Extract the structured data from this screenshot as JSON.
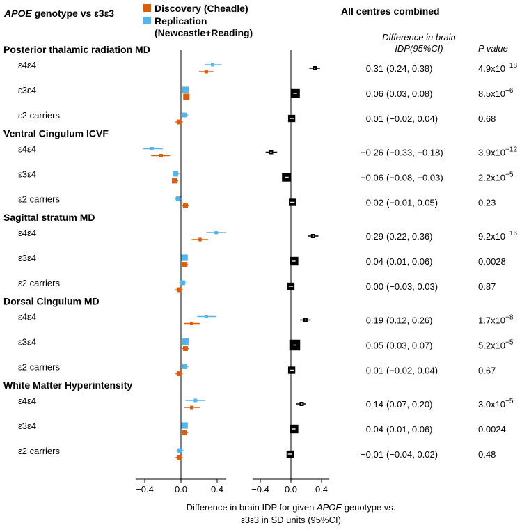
{
  "chart_data": {
    "type": "forest",
    "title": {
      "gene": "APOE",
      "rest": " genotype vs ε3ε3"
    },
    "legend": [
      {
        "label": "Discovery (Cheadle)",
        "color": "#d95f0e"
      },
      {
        "label": "Replication",
        "label2": "(Newcastle+Reading)",
        "color": "#56b4e9"
      }
    ],
    "combined_title": "All centres combined",
    "col_headers": {
      "diff_line1": "Difference in brain",
      "diff_line2": "IDP(95%CI)",
      "p": "P value"
    },
    "xticks": [
      "−0.4",
      "0.0",
      "0.4"
    ],
    "xlim": [
      -0.5,
      0.5
    ],
    "xlabel": {
      "pre": "Difference in brain IDP for given ",
      "gene": "APOE",
      "post": " genotype vs.",
      "line2": "ε3ε3 in SD units (95%CI)"
    },
    "groups": [
      {
        "title": "Posterior thalamic radiation MD",
        "rows": [
          {
            "label": "ε4ε4",
            "disc": [
              0.28,
              0.2,
              0.36
            ],
            "repl": [
              0.35,
              0.26,
              0.45
            ],
            "comb": [
              0.31,
              0.24,
              0.38
            ],
            "value": "0.31",
            "ci": "(0.24, 0.38)",
            "p_base": "4.9x10",
            "p_exp": "−18"
          },
          {
            "label": "ε3ε4",
            "disc": [
              0.06,
              0.03,
              0.09
            ],
            "repl": [
              0.05,
              0.02,
              0.08
            ],
            "comb": [
              0.06,
              0.03,
              0.08
            ],
            "value": "0.06",
            "ci": "(0.03, 0.08)",
            "p_base": "8.5x10",
            "p_exp": "−6"
          },
          {
            "label": "ε2 carriers",
            "disc": [
              -0.02,
              -0.06,
              0.02
            ],
            "repl": [
              0.04,
              0.0,
              0.08
            ],
            "comb": [
              0.01,
              -0.02,
              0.04
            ],
            "value": "0.01",
            "ci": "(−0.02, 0.04)",
            "p_base": "0.68",
            "p_exp": ""
          }
        ]
      },
      {
        "title": "Ventral Cingulum ICVF",
        "rows": [
          {
            "label": "ε4ε4",
            "disc": [
              -0.22,
              -0.33,
              -0.12
            ],
            "repl": [
              -0.32,
              -0.42,
              -0.2
            ],
            "comb": [
              -0.26,
              -0.33,
              -0.18
            ],
            "value": "−0.26",
            "ci": "(−0.33, −0.18)",
            "p_base": "3.9x10",
            "p_exp": "−12"
          },
          {
            "label": "ε3ε4",
            "disc": [
              -0.07,
              -0.1,
              -0.03
            ],
            "repl": [
              -0.06,
              -0.09,
              -0.02
            ],
            "comb": [
              -0.06,
              -0.08,
              -0.03
            ],
            "value": "−0.06",
            "ci": "(−0.08, −0.03)",
            "p_base": "2.2x10",
            "p_exp": "−5"
          },
          {
            "label": "ε2 carriers",
            "disc": [
              0.05,
              0.01,
              0.09
            ],
            "repl": [
              -0.03,
              -0.07,
              0.01
            ],
            "comb": [
              0.02,
              -0.01,
              0.05
            ],
            "value": "0.02",
            "ci": "(−0.01, 0.05)",
            "p_base": "0.23",
            "p_exp": ""
          }
        ]
      },
      {
        "title": "Sagittal stratum MD",
        "rows": [
          {
            "label": "ε4ε4",
            "disc": [
              0.21,
              0.12,
              0.3
            ],
            "repl": [
              0.39,
              0.28,
              0.5
            ],
            "comb": [
              0.29,
              0.22,
              0.36
            ],
            "value": "0.29",
            "ci": "(0.22, 0.36)",
            "p_base": "9.2x10",
            "p_exp": "−16"
          },
          {
            "label": "ε3ε4",
            "disc": [
              0.04,
              0.01,
              0.08
            ],
            "repl": [
              0.04,
              0.01,
              0.07
            ],
            "comb": [
              0.04,
              0.01,
              0.06
            ],
            "value": "0.04",
            "ci": "(0.01, 0.06)",
            "p_base": "0.0028",
            "p_exp": ""
          },
          {
            "label": "ε2 carriers",
            "disc": [
              -0.02,
              -0.06,
              0.02
            ],
            "repl": [
              0.02,
              -0.02,
              0.06
            ],
            "comb": [
              0.0,
              -0.03,
              0.03
            ],
            "value": "0.00",
            "ci": "(−0.03, 0.03)",
            "p_base": "0.87",
            "p_exp": ""
          }
        ]
      },
      {
        "title": "Dorsal Cingulum MD",
        "rows": [
          {
            "label": "ε4ε4",
            "disc": [
              0.12,
              0.03,
              0.21
            ],
            "repl": [
              0.28,
              0.18,
              0.39
            ],
            "comb": [
              0.19,
              0.12,
              0.26
            ],
            "value": "0.19",
            "ci": "(0.12, 0.26)",
            "p_base": "1.7x10",
            "p_exp": "−8"
          },
          {
            "label": "ε3ε4",
            "disc": [
              0.05,
              0.01,
              0.09
            ],
            "repl": [
              0.05,
              0.02,
              0.08
            ],
            "comb": [
              0.05,
              0.03,
              0.07
            ],
            "value": "0.05",
            "ci": "(0.03, 0.07)",
            "p_base": "5.2x10",
            "p_exp": "−5"
          },
          {
            "label": "ε2 carriers",
            "disc": [
              -0.02,
              -0.06,
              0.02
            ],
            "repl": [
              0.04,
              0.0,
              0.08
            ],
            "comb": [
              0.01,
              -0.02,
              0.04
            ],
            "value": "0.01",
            "ci": "(−0.02, 0.04)",
            "p_base": "0.67",
            "p_exp": ""
          }
        ]
      },
      {
        "title": "White Matter Hyperintensity",
        "rows": [
          {
            "label": "ε4ε4",
            "disc": [
              0.12,
              0.03,
              0.21
            ],
            "repl": [
              0.16,
              0.05,
              0.27
            ],
            "comb": [
              0.14,
              0.07,
              0.2
            ],
            "value": "0.14",
            "ci": "(0.07, 0.20)",
            "p_base": "3.0x10",
            "p_exp": "−5"
          },
          {
            "label": "ε3ε4",
            "disc": [
              0.04,
              0.0,
              0.08
            ],
            "repl": [
              0.04,
              0.01,
              0.07
            ],
            "comb": [
              0.04,
              0.01,
              0.06
            ],
            "value": "0.04",
            "ci": "(0.01, 0.06)",
            "p_base": "0.0024",
            "p_exp": ""
          },
          {
            "label": "ε2 carriers",
            "disc": [
              -0.02,
              -0.06,
              0.02
            ],
            "repl": [
              -0.01,
              -0.05,
              0.03
            ],
            "comb": [
              -0.01,
              -0.04,
              0.02
            ],
            "value": "−0.01",
            "ci": "(−0.04, 0.02)",
            "p_base": "0.48",
            "p_exp": ""
          }
        ]
      }
    ]
  }
}
